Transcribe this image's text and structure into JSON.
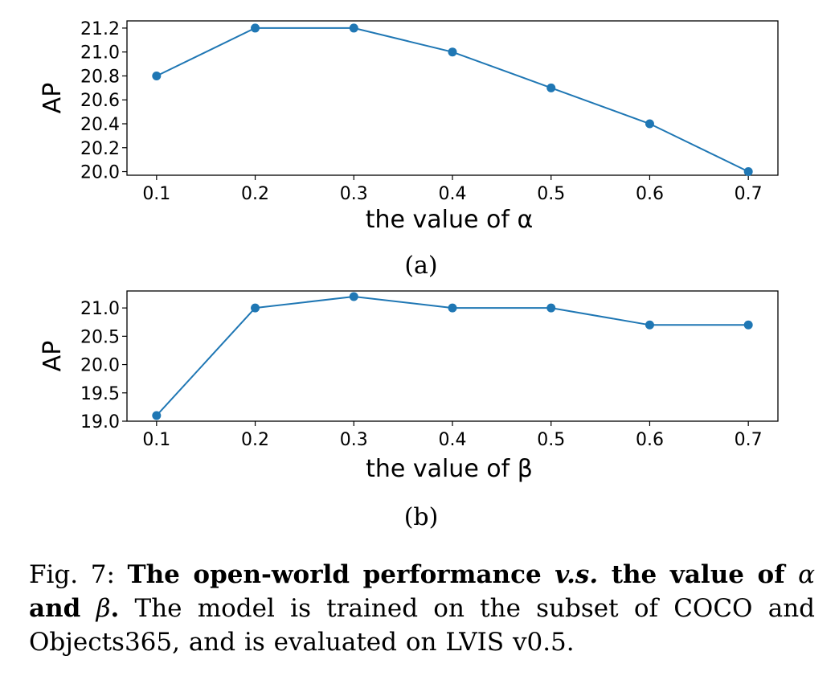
{
  "chart_data": [
    {
      "type": "line",
      "xlabel": "the value of α",
      "ylabel": "AP",
      "x": [
        0.1,
        0.2,
        0.3,
        0.4,
        0.5,
        0.6,
        0.7
      ],
      "xticks": [
        "0.1",
        "0.2",
        "0.3",
        "0.4",
        "0.5",
        "0.6",
        "0.7"
      ],
      "ylim": [
        19.97,
        21.26
      ],
      "yticks": [
        20.0,
        20.2,
        20.4,
        20.6,
        20.8,
        21.0,
        21.2
      ],
      "ytick_labels": [
        "20.0",
        "20.2",
        "20.4",
        "20.6",
        "20.8",
        "21.0",
        "21.2"
      ],
      "series": [
        {
          "values": [
            20.8,
            21.2,
            21.2,
            21.0,
            20.7,
            20.4,
            20.0
          ],
          "color": "#1f77b4"
        }
      ],
      "sublabel": "(a)",
      "grid": false
    },
    {
      "type": "line",
      "xlabel": "the value of β",
      "ylabel": "AP",
      "x": [
        0.1,
        0.2,
        0.3,
        0.4,
        0.5,
        0.6,
        0.7
      ],
      "xticks": [
        "0.1",
        "0.2",
        "0.3",
        "0.4",
        "0.5",
        "0.6",
        "0.7"
      ],
      "ylim": [
        19.0,
        21.3
      ],
      "yticks": [
        19.0,
        19.5,
        20.0,
        20.5,
        21.0
      ],
      "ytick_labels": [
        "19.0",
        "19.5",
        "20.0",
        "20.5",
        "21.0"
      ],
      "series": [
        {
          "values": [
            19.1,
            21.0,
            21.2,
            21.0,
            21.0,
            20.7,
            20.7
          ],
          "color": "#1f77b4"
        }
      ],
      "sublabel": "(b)",
      "grid": false
    }
  ],
  "caption": {
    "fig_label": "Fig. 7: ",
    "bold_part1": "The open-world performance ",
    "bold_italic_vs": "v.s.",
    "bold_part2": " the value of ",
    "alpha_symbol": "α",
    "bold_and": "and",
    "beta_symbol": "β",
    "bold_period": ".",
    "rest": " The model is trained on the subset of COCO and Objects365, and is evaluated on LVIS v0.5."
  }
}
